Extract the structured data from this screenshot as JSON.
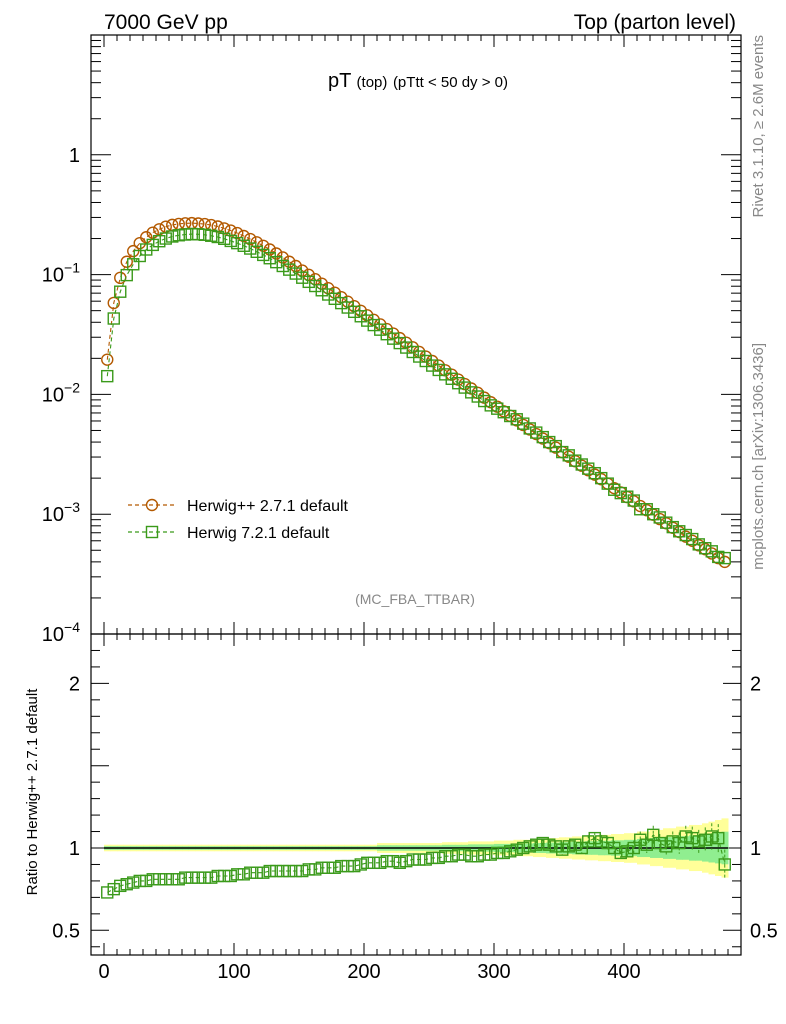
{
  "header": {
    "left": "7000 GeV pp",
    "right": "Top (parton level)"
  },
  "side_labels": {
    "rivet": "Rivet 3.1.10, ≥ 2.6M events",
    "mcplots": "mcplots.cern.ch [arXiv:1306.3436]"
  },
  "colors": {
    "herwigpp": "#b35900",
    "herwig7": "#3a9a1a",
    "band_yellow": "#ffff99",
    "band_green": "#90ee90"
  },
  "chart_data": [
    {
      "type": "line",
      "title_main": "pT",
      "title_sub": "(top)",
      "title_cut": "(pTtt < 50 dy > 0)",
      "watermark": "(MC_FBA_TTBAR)",
      "yscale": "log",
      "ylim": [
        0.0001,
        10
      ],
      "xlim": [
        -10,
        490
      ],
      "yticks": [
        {
          "value": 1,
          "base": "1",
          "exp": ""
        },
        {
          "value": 0.1,
          "base": "10",
          "exp": "−1"
        },
        {
          "value": 0.01,
          "base": "10",
          "exp": "−2"
        },
        {
          "value": 0.001,
          "base": "10",
          "exp": "−3"
        },
        {
          "value": 0.0001,
          "base": "10",
          "exp": "−4"
        }
      ],
      "legend_placement": "lower-left",
      "x": [
        2.5,
        7.5,
        12.5,
        17.5,
        22.5,
        27.5,
        32.5,
        37.5,
        42.5,
        47.5,
        52.5,
        57.5,
        62.5,
        67.5,
        72.5,
        77.5,
        82.5,
        87.5,
        92.5,
        97.5,
        102.5,
        107.5,
        112.5,
        117.5,
        122.5,
        127.5,
        132.5,
        137.5,
        142.5,
        147.5,
        152.5,
        157.5,
        162.5,
        167.5,
        172.5,
        177.5,
        182.5,
        187.5,
        192.5,
        197.5,
        202.5,
        207.5,
        212.5,
        217.5,
        222.5,
        227.5,
        232.5,
        237.5,
        242.5,
        247.5,
        252.5,
        257.5,
        262.5,
        267.5,
        272.5,
        277.5,
        282.5,
        287.5,
        292.5,
        297.5,
        302.5,
        307.5,
        312.5,
        317.5,
        322.5,
        327.5,
        332.5,
        337.5,
        342.5,
        347.5,
        352.5,
        357.5,
        362.5,
        367.5,
        372.5,
        377.5,
        382.5,
        387.5,
        392.5,
        397.5,
        402.5,
        407.5,
        412.5,
        417.5,
        422.5,
        427.5,
        432.5,
        437.5,
        442.5,
        447.5,
        452.5,
        457.5,
        462.5,
        467.5,
        472.5,
        477.5
      ],
      "series": [
        {
          "name": "Herwig++ 2.7.1 default",
          "marker": "circle",
          "values": [
            0.0195,
            0.058,
            0.094,
            0.128,
            0.157,
            0.183,
            0.205,
            0.224,
            0.239,
            0.251,
            0.26,
            0.265,
            0.268,
            0.269,
            0.267,
            0.264,
            0.259,
            0.252,
            0.243,
            0.233,
            0.222,
            0.21,
            0.198,
            0.186,
            0.174,
            0.162,
            0.15,
            0.139,
            0.128,
            0.118,
            0.108,
            0.0995,
            0.0915,
            0.084,
            0.077,
            0.0707,
            0.0648,
            0.0594,
            0.0545,
            0.0499,
            0.0457,
            0.0419,
            0.0384,
            0.0351,
            0.0322,
            0.0295,
            0.027,
            0.0247,
            0.0226,
            0.0207,
            0.019,
            0.0174,
            0.0159,
            0.0146,
            0.0133,
            0.0122,
            0.0112,
            0.0103,
            0.0094,
            0.0086,
            0.0079,
            0.00723,
            0.00662,
            0.00607,
            0.00556,
            0.0051,
            0.00467,
            0.00428,
            0.00392,
            0.0036,
            0.0033,
            0.00302,
            0.00277,
            0.00254,
            0.00233,
            0.00214,
            0.00196,
            0.0018,
            0.00165,
            0.00152,
            0.00139,
            0.00128,
            0.00117,
            0.00108,
            0.00099,
            0.00091,
            0.00084,
            0.00077,
            0.00071,
            0.00065,
            0.0006,
            0.00055,
            0.00051,
            0.00047,
            0.00043,
            0.0004
          ]
        },
        {
          "name": "Herwig 7.2.1 default",
          "marker": "square",
          "values": [
            0.0142,
            0.043,
            0.072,
            0.099,
            0.122,
            0.143,
            0.162,
            0.177,
            0.19,
            0.2,
            0.208,
            0.213,
            0.216,
            0.218,
            0.217,
            0.215,
            0.211,
            0.206,
            0.199,
            0.191,
            0.183,
            0.174,
            0.165,
            0.155,
            0.146,
            0.137,
            0.127,
            0.118,
            0.11,
            0.102,
            0.0942,
            0.087,
            0.0803,
            0.074,
            0.0682,
            0.0628,
            0.0578,
            0.0531,
            0.0489,
            0.0449,
            0.0413,
            0.0379,
            0.0347,
            0.0318,
            0.0292,
            0.0268,
            0.0246,
            0.0226,
            0.0207,
            0.019,
            0.0174,
            0.016,
            0.0147,
            0.0135,
            0.0124,
            0.0114,
            0.0104,
            0.0096,
            0.0088,
            0.0081,
            0.0076,
            0.0071,
            0.0066,
            0.0062,
            0.0057,
            0.0052,
            0.0048,
            0.0044,
            0.004,
            0.0037,
            0.0033,
            0.0031,
            0.0028,
            0.0026,
            0.0024,
            0.0022,
            0.002,
            0.0018,
            0.0016,
            0.0015,
            0.0014,
            0.0013,
            0.0011,
            0.0011,
            0.001,
            0.00094,
            0.00085,
            0.00078,
            0.00072,
            0.00067,
            0.00062,
            0.00056,
            0.00052,
            0.00049,
            0.00044,
            0.00043
          ]
        }
      ]
    },
    {
      "type": "line",
      "ylabel": "Ratio to Herwig++ 2.7.1 default",
      "ylim": [
        0.35,
        2.3
      ],
      "xlim": [
        -10,
        490
      ],
      "yticks": [
        0.5,
        1,
        2
      ],
      "xticks": [
        0,
        100,
        200,
        300,
        400
      ],
      "x": [
        2.5,
        7.5,
        12.5,
        17.5,
        22.5,
        27.5,
        32.5,
        37.5,
        42.5,
        47.5,
        52.5,
        57.5,
        62.5,
        67.5,
        72.5,
        77.5,
        82.5,
        87.5,
        92.5,
        97.5,
        102.5,
        107.5,
        112.5,
        117.5,
        122.5,
        127.5,
        132.5,
        137.5,
        142.5,
        147.5,
        152.5,
        157.5,
        162.5,
        167.5,
        172.5,
        177.5,
        182.5,
        187.5,
        192.5,
        197.5,
        202.5,
        207.5,
        212.5,
        217.5,
        222.5,
        227.5,
        232.5,
        237.5,
        242.5,
        247.5,
        252.5,
        257.5,
        262.5,
        267.5,
        272.5,
        277.5,
        282.5,
        287.5,
        292.5,
        297.5,
        302.5,
        307.5,
        312.5,
        317.5,
        322.5,
        327.5,
        332.5,
        337.5,
        342.5,
        347.5,
        352.5,
        357.5,
        362.5,
        367.5,
        372.5,
        377.5,
        382.5,
        387.5,
        392.5,
        397.5,
        402.5,
        407.5,
        412.5,
        417.5,
        422.5,
        427.5,
        432.5,
        437.5,
        442.5,
        447.5,
        452.5,
        457.5,
        462.5,
        467.5,
        472.5,
        477.5
      ],
      "band_half_width_yellow": [
        0.02,
        0.02,
        0.02,
        0.02,
        0.02,
        0.02,
        0.02,
        0.02,
        0.02,
        0.02,
        0.02,
        0.02,
        0.02,
        0.02,
        0.02,
        0.02,
        0.02,
        0.02,
        0.02,
        0.02,
        0.02,
        0.02,
        0.02,
        0.02,
        0.02,
        0.02,
        0.02,
        0.02,
        0.02,
        0.02,
        0.02,
        0.02,
        0.02,
        0.02,
        0.02,
        0.02,
        0.02,
        0.02,
        0.02,
        0.02,
        0.02,
        0.02,
        0.03,
        0.03,
        0.03,
        0.03,
        0.03,
        0.03,
        0.03,
        0.03,
        0.03,
        0.03,
        0.035,
        0.035,
        0.035,
        0.035,
        0.04,
        0.04,
        0.04,
        0.04,
        0.045,
        0.045,
        0.045,
        0.05,
        0.05,
        0.05,
        0.055,
        0.055,
        0.06,
        0.06,
        0.065,
        0.065,
        0.07,
        0.07,
        0.075,
        0.075,
        0.08,
        0.08,
        0.085,
        0.085,
        0.09,
        0.09,
        0.1,
        0.1,
        0.11,
        0.11,
        0.12,
        0.12,
        0.13,
        0.13,
        0.14,
        0.14,
        0.15,
        0.16,
        0.17,
        0.18
      ],
      "series": [
        {
          "name": "Herwig++ 2.7.1 default",
          "values": [
            1,
            1,
            1,
            1,
            1,
            1,
            1,
            1,
            1,
            1,
            1,
            1,
            1,
            1,
            1,
            1,
            1,
            1,
            1,
            1,
            1,
            1,
            1,
            1,
            1,
            1,
            1,
            1,
            1,
            1,
            1,
            1,
            1,
            1,
            1,
            1,
            1,
            1,
            1,
            1,
            1,
            1,
            1,
            1,
            1,
            1,
            1,
            1,
            1,
            1,
            1,
            1,
            1,
            1,
            1,
            1,
            1,
            1,
            1,
            1,
            1,
            1,
            1,
            1,
            1,
            1,
            1,
            1,
            1,
            1,
            1,
            1,
            1,
            1,
            1,
            1,
            1,
            1,
            1,
            1,
            1,
            1,
            1,
            1,
            1,
            1,
            1,
            1,
            1,
            1,
            1,
            1,
            1,
            1,
            1,
            1
          ]
        },
        {
          "name": "Herwig 7.2.1 default",
          "marker": "square",
          "values": [
            0.73,
            0.75,
            0.77,
            0.78,
            0.79,
            0.8,
            0.8,
            0.81,
            0.81,
            0.81,
            0.81,
            0.81,
            0.82,
            0.82,
            0.82,
            0.82,
            0.82,
            0.83,
            0.83,
            0.83,
            0.84,
            0.84,
            0.85,
            0.85,
            0.85,
            0.86,
            0.86,
            0.86,
            0.86,
            0.86,
            0.86,
            0.87,
            0.87,
            0.88,
            0.88,
            0.88,
            0.89,
            0.89,
            0.89,
            0.9,
            0.91,
            0.91,
            0.91,
            0.92,
            0.92,
            0.91,
            0.92,
            0.93,
            0.93,
            0.93,
            0.94,
            0.94,
            0.95,
            0.95,
            0.96,
            0.96,
            0.95,
            0.95,
            0.96,
            0.96,
            0.97,
            0.97,
            0.98,
            0.99,
            1.0,
            1.01,
            1.02,
            1.03,
            1.02,
            1.01,
            0.99,
            1.01,
            1.02,
            1.0,
            1.04,
            1.06,
            1.04,
            1.03,
            1.0,
            0.97,
            0.98,
            1.0,
            1.05,
            1.02,
            1.08,
            1.03,
            1.01,
            1.04,
            1.03,
            1.07,
            1.06,
            1.04,
            1.05,
            1.07,
            1.06,
            0.9
          ]
        }
      ]
    }
  ]
}
